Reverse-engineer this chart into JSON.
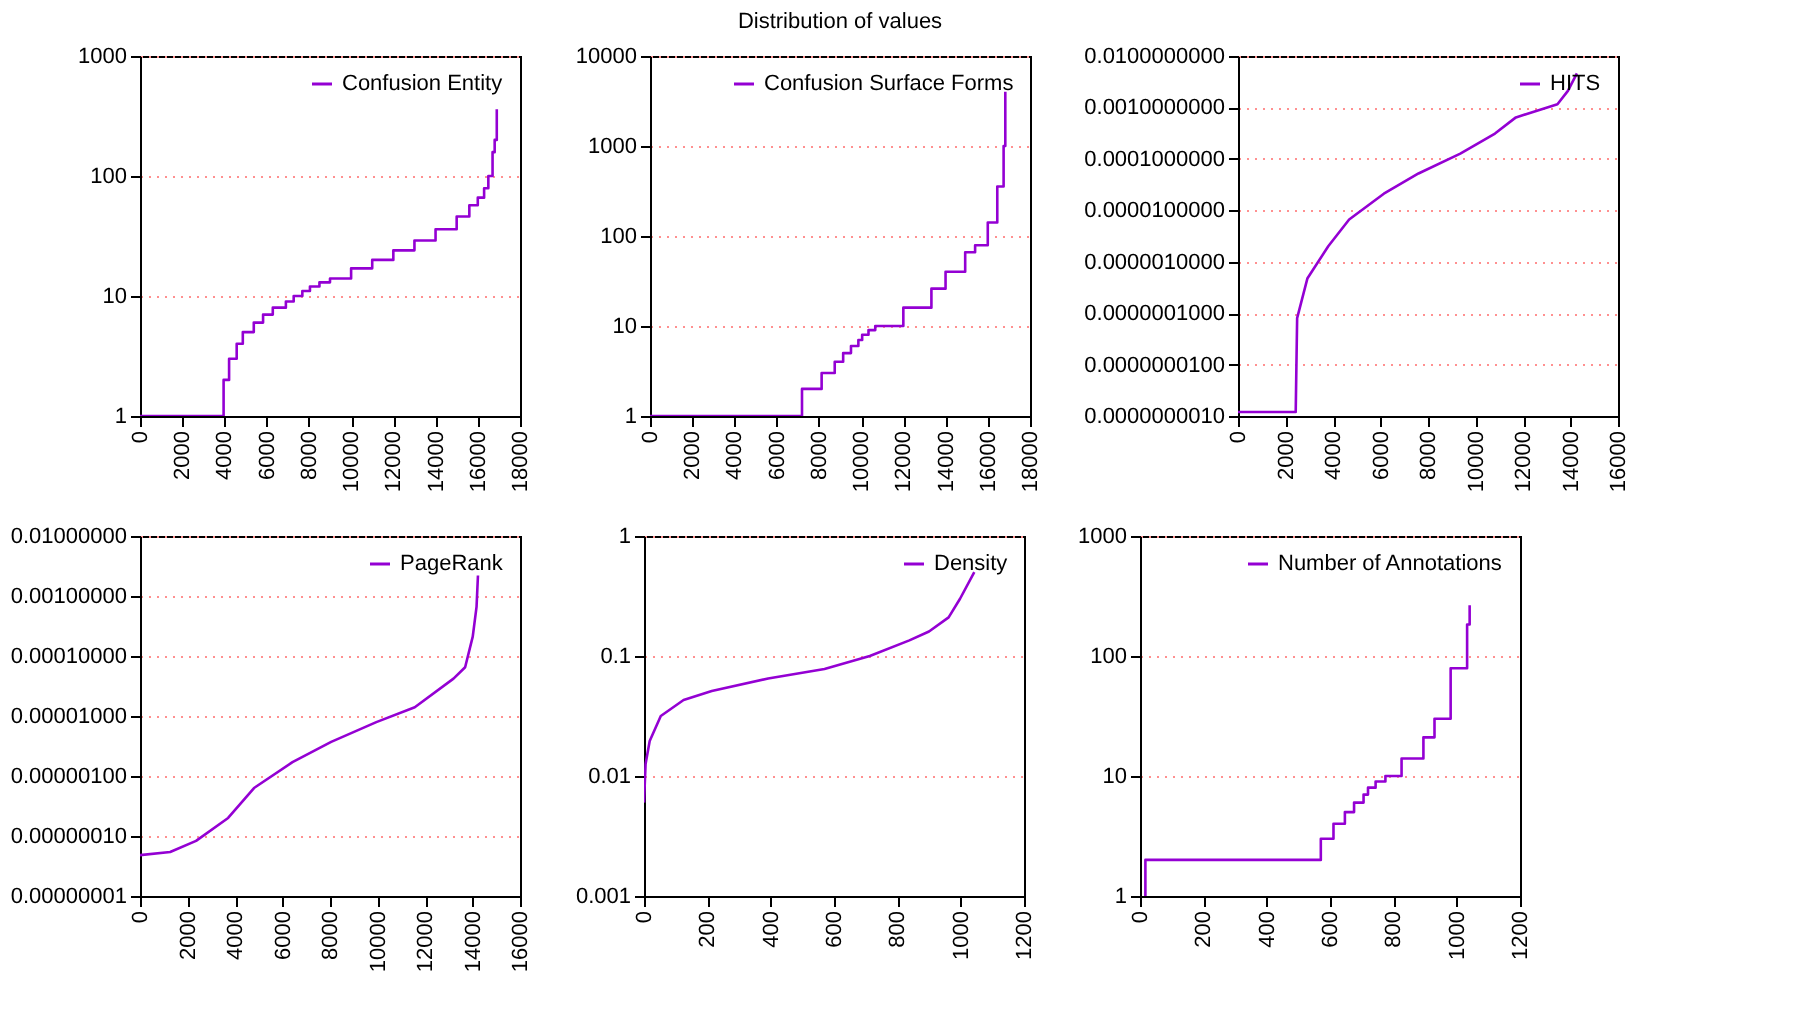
{
  "chart_data": [
    {
      "type": "step",
      "series": [
        {
          "name": "Confusion Entity",
          "color": "#9400d3",
          "x": [
            0,
            3960,
            4220,
            4580,
            4870,
            5390,
            5830,
            6290,
            6910,
            7280,
            7690,
            8050,
            8500,
            9000,
            10000,
            11000,
            12000,
            13000,
            14000,
            15000,
            15600,
            16000,
            16300,
            16500,
            16700,
            16800,
            16900
          ],
          "values": [
            1,
            2,
            3,
            4,
            5,
            6,
            7,
            8,
            9,
            10,
            11,
            12,
            13,
            14,
            17,
            20,
            24,
            29,
            36,
            46,
            57,
            66,
            79,
            100,
            158,
            200,
            360
          ]
        }
      ],
      "log": true,
      "xlim": [
        0,
        18000
      ],
      "xticks": [
        0,
        2000,
        4000,
        6000,
        8000,
        10000,
        12000,
        14000,
        16000,
        18000
      ],
      "ylim": [
        1,
        1000
      ],
      "yticks": [
        1,
        10,
        100,
        1000
      ],
      "grid": "y",
      "legend": "top right"
    },
    {
      "type": "step",
      "title": "Distribution of values",
      "series": [
        {
          "name": "Confusion Surface Forms",
          "color": "#9400d3",
          "x": [
            0,
            7200,
            8130,
            8750,
            9150,
            9520,
            9870,
            10050,
            10350,
            10670,
            12000,
            13330,
            14000,
            14930,
            15400,
            16000,
            16450,
            16750,
            16830
          ],
          "values": [
            1,
            2,
            3,
            4,
            5,
            6,
            7,
            8,
            9,
            10,
            16,
            26,
            40,
            66,
            79,
            141,
            355,
            1000,
            4000
          ]
        }
      ],
      "log": true,
      "xlim": [
        0,
        18000
      ],
      "xticks": [
        0,
        2000,
        4000,
        6000,
        8000,
        10000,
        12000,
        14000,
        16000,
        18000
      ],
      "ylim": [
        1,
        10000
      ],
      "yticks": [
        1,
        10,
        100,
        1000,
        10000
      ],
      "grid": "y",
      "legend": "top right"
    },
    {
      "type": "line",
      "series": [
        {
          "name": "HITS",
          "color": "#9400d3",
          "x": [
            0,
            2430,
            2490,
            2920,
            3800,
            4680,
            6140,
            7600,
            9360,
            10820,
            11700,
            13450,
            13890,
            14270
          ],
          "values": [
            1.2e-09,
            1.2e-09,
            8e-08,
            4.7e-07,
            2e-06,
            6.6e-06,
            2.1e-05,
            5.2e-05,
            0.000126,
            0.00031,
            0.00064,
            0.00115,
            0.0021,
            0.0046
          ]
        }
      ],
      "log": true,
      "xlim": [
        0,
        16000
      ],
      "xticks": [
        0,
        2000,
        4000,
        6000,
        8000,
        10000,
        12000,
        14000,
        16000
      ],
      "ylim": [
        1e-09,
        0.01
      ],
      "yticks": [
        {
          "value": 1e-09,
          "label": "0.0000000010"
        },
        {
          "value": 1e-08,
          "label": "0.0000000100"
        },
        {
          "value": 1e-07,
          "label": "0.0000001000"
        },
        {
          "value": 1e-06,
          "label": "0.0000010000"
        },
        {
          "value": 1e-05,
          "label": "0.0000100000"
        },
        {
          "value": 0.0001,
          "label": "0.0001000000"
        },
        {
          "value": 0.001,
          "label": "0.0010000000"
        },
        {
          "value": 0.01,
          "label": "0.0100000000"
        }
      ],
      "grid": "y",
      "legend": "top right"
    },
    {
      "type": "line",
      "series": [
        {
          "name": "PageRank",
          "color": "#9400d3",
          "x": [
            0,
            1270,
            2360,
            3710,
            4800,
            6420,
            8050,
            9950,
            11570,
            13200,
            13690,
            14010,
            14170,
            14230
          ],
          "values": [
            4.8e-08,
            5.4e-08,
            8.3e-08,
            2e-07,
            6.3e-07,
            1.7e-06,
            3.7e-06,
            7.9e-06,
            1.4e-05,
            4.2e-05,
            6.5e-05,
            0.00021,
            0.00066,
            0.0022
          ]
        }
      ],
      "log": true,
      "xlim": [
        0,
        16000
      ],
      "xticks": [
        0,
        2000,
        4000,
        6000,
        8000,
        10000,
        12000,
        14000,
        16000
      ],
      "ylim": [
        1e-08,
        0.01
      ],
      "yticks": [
        {
          "value": 1e-08,
          "label": "0.00000001"
        },
        {
          "value": 1e-07,
          "label": "0.00000010"
        },
        {
          "value": 1e-06,
          "label": "0.00000100"
        },
        {
          "value": 1e-05,
          "label": "0.00001000"
        },
        {
          "value": 0.0001,
          "label": "0.00010000"
        },
        {
          "value": 0.001,
          "label": "0.00100000"
        },
        {
          "value": 0.01,
          "label": "0.01000000"
        }
      ],
      "grid": "y",
      "legend": "top right"
    },
    {
      "type": "line",
      "series": [
        {
          "name": "Density",
          "color": "#9400d3",
          "x": [
            0,
            5,
            18,
            53,
            125,
            214,
            392,
            570,
            713,
            838,
            900,
            962,
            998,
            1043
          ],
          "values": [
            0.006,
            0.0126,
            0.0196,
            0.0316,
            0.043,
            0.051,
            0.065,
            0.078,
            0.1,
            0.135,
            0.16,
            0.21,
            0.3,
            0.5
          ]
        }
      ],
      "log": true,
      "xlim": [
        0,
        1200
      ],
      "xticks": [
        0,
        200,
        400,
        600,
        800,
        1000,
        1200
      ],
      "ylim": [
        0.001,
        1
      ],
      "yticks": [
        0.001,
        0.01,
        0.1,
        1
      ],
      "grid": "y",
      "legend": "top right"
    },
    {
      "type": "step",
      "series": [
        {
          "name": "Number of Annotations",
          "color": "#9400d3",
          "x": [
            15,
            17,
            571,
            611,
            647,
            676,
            706,
            720,
            744,
            775,
            826,
            895,
            930,
            981,
            1033,
            1041
          ],
          "values": [
            1,
            2,
            3,
            4,
            5,
            6,
            7,
            8,
            9,
            10,
            14,
            21,
            30,
            79,
            183,
            265
          ]
        }
      ],
      "log": true,
      "xlim": [
        0,
        1200
      ],
      "xticks": [
        0,
        200,
        400,
        600,
        800,
        1000,
        1200
      ],
      "ylim": [
        1,
        1000
      ],
      "yticks": [
        1,
        10,
        100,
        1000
      ],
      "grid": "y",
      "legend": "top right"
    }
  ]
}
